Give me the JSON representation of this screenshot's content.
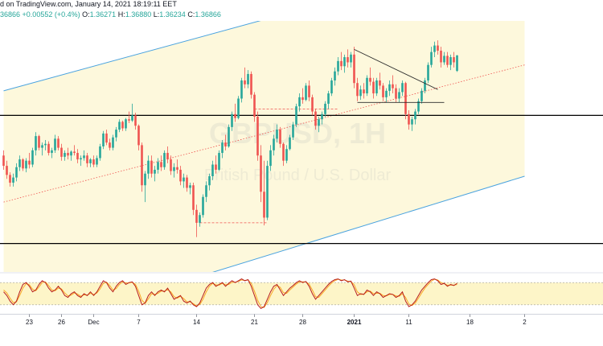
{
  "header": {
    "source": "d on TradingView.com, January 14, 2021 18:19:11 EET",
    "last_price": "36866",
    "change": "+0.00552 (+0.4%)",
    "o_label": "O:",
    "o_value": "1.36271",
    "h_label": "H:",
    "h_value": "1.36880",
    "l_label": "L:",
    "l_value": "1.36234",
    "c_label": "C:",
    "c_value": "1.36866"
  },
  "watermark": {
    "symbol": "GBPUSD, 1H",
    "name": "British Pound / U.S. Dollar"
  },
  "colors": {
    "up": "#26a69a",
    "down": "#ef5350",
    "channel_line": "#4aa3df",
    "channel_fill": "#fdf8dc",
    "horizontal": "#000000",
    "osc_k": "#b71c1c",
    "osc_d": "#f9a825",
    "osc_band": "#fdf5c8",
    "dashed": "#ef5350"
  },
  "chart_data": {
    "type": "candlestick",
    "x_ticks": [
      {
        "label": "23",
        "index": 8,
        "bold": false
      },
      {
        "label": "26",
        "index": 18,
        "bold": false
      },
      {
        "label": "Dec",
        "index": 28,
        "bold": false
      },
      {
        "label": "7",
        "index": 42,
        "bold": false
      },
      {
        "label": "14",
        "index": 60,
        "bold": false
      },
      {
        "label": "21",
        "index": 78,
        "bold": false
      },
      {
        "label": "28",
        "index": 93,
        "bold": false
      },
      {
        "label": "2021",
        "index": 109,
        "bold": true
      },
      {
        "label": "11",
        "index": 126,
        "bold": false
      },
      {
        "label": "18",
        "index": 145,
        "bold": false
      },
      {
        "label": "2",
        "index": 162,
        "bold": false
      }
    ],
    "price_range": [
      1.285,
      1.382
    ],
    "horizontal_levels": [
      1.3455,
      1.296
    ],
    "channel": {
      "upper": [
        [
          0,
          1.355
        ],
        [
          162,
          1.41
        ]
      ],
      "lower": [
        [
          0,
          1.26
        ],
        [
          162,
          1.322
        ]
      ],
      "mid_dotted": [
        [
          0,
          1.312
        ],
        [
          162,
          1.365
        ]
      ]
    },
    "dashed_levels": [
      {
        "from": 78,
        "to": 104,
        "price": 1.348
      },
      {
        "from": 61,
        "to": 82,
        "price": 1.304
      }
    ],
    "triangle": {
      "upper": [
        [
          109,
          1.371
        ],
        [
          135,
          1.3555
        ]
      ],
      "lower": [
        [
          110,
          1.3505
        ],
        [
          137,
          1.3505
        ]
      ]
    },
    "candles": [
      [
        1.33,
        1.332,
        1.3245,
        1.326
      ],
      [
        1.326,
        1.328,
        1.321,
        1.3225
      ],
      [
        1.3225,
        1.3235,
        1.318,
        1.3195
      ],
      [
        1.3195,
        1.323,
        1.318,
        1.3215
      ],
      [
        1.3215,
        1.327,
        1.32,
        1.3255
      ],
      [
        1.3255,
        1.33,
        1.324,
        1.3285
      ],
      [
        1.3285,
        1.329,
        1.324,
        1.325
      ],
      [
        1.325,
        1.329,
        1.3235,
        1.328
      ],
      [
        1.328,
        1.331,
        1.325,
        1.3265
      ],
      [
        1.3265,
        1.333,
        1.3255,
        1.332
      ],
      [
        1.332,
        1.339,
        1.33,
        1.3375
      ],
      [
        1.3375,
        1.338,
        1.332,
        1.333
      ],
      [
        1.333,
        1.335,
        1.33,
        1.334
      ],
      [
        1.334,
        1.336,
        1.332,
        1.3345
      ],
      [
        1.3345,
        1.3355,
        1.33,
        1.331
      ],
      [
        1.331,
        1.333,
        1.329,
        1.332
      ],
      [
        1.332,
        1.338,
        1.331,
        1.3365
      ],
      [
        1.3365,
        1.3375,
        1.332,
        1.333
      ],
      [
        1.333,
        1.3345,
        1.328,
        1.3295
      ],
      [
        1.3295,
        1.332,
        1.328,
        1.331
      ],
      [
        1.331,
        1.333,
        1.3285,
        1.33
      ],
      [
        1.33,
        1.332,
        1.328,
        1.3315
      ],
      [
        1.3315,
        1.334,
        1.33,
        1.331
      ],
      [
        1.331,
        1.3325,
        1.327,
        1.3285
      ],
      [
        1.3285,
        1.33,
        1.326,
        1.329
      ],
      [
        1.329,
        1.332,
        1.328,
        1.33
      ],
      [
        1.33,
        1.331,
        1.3255,
        1.327
      ],
      [
        1.327,
        1.329,
        1.3255,
        1.3285
      ],
      [
        1.3285,
        1.33,
        1.3255,
        1.3265
      ],
      [
        1.3265,
        1.33,
        1.3255,
        1.329
      ],
      [
        1.329,
        1.3345,
        1.328,
        1.3335
      ],
      [
        1.3335,
        1.3395,
        1.3325,
        1.3385
      ],
      [
        1.3385,
        1.34,
        1.334,
        1.335
      ],
      [
        1.335,
        1.3365,
        1.332,
        1.333
      ],
      [
        1.333,
        1.338,
        1.332,
        1.337
      ],
      [
        1.337,
        1.341,
        1.3355,
        1.34
      ],
      [
        1.34,
        1.344,
        1.339,
        1.343
      ],
      [
        1.343,
        1.3435,
        1.3395,
        1.3405
      ],
      [
        1.3405,
        1.3445,
        1.3395,
        1.344
      ],
      [
        1.344,
        1.347,
        1.3425,
        1.3435
      ],
      [
        1.3435,
        1.35,
        1.343,
        1.3455
      ],
      [
        1.3455,
        1.3465,
        1.34,
        1.3415
      ],
      [
        1.3415,
        1.342,
        1.332,
        1.334
      ],
      [
        1.334,
        1.335,
        1.316,
        1.3185
      ],
      [
        1.3185,
        1.324,
        1.312,
        1.323
      ],
      [
        1.323,
        1.33,
        1.321,
        1.328
      ],
      [
        1.328,
        1.33,
        1.3215,
        1.323
      ],
      [
        1.323,
        1.326,
        1.32,
        1.3245
      ],
      [
        1.3245,
        1.329,
        1.323,
        1.3275
      ],
      [
        1.3275,
        1.33,
        1.324,
        1.3255
      ],
      [
        1.3255,
        1.332,
        1.3245,
        1.331
      ],
      [
        1.331,
        1.3335,
        1.327,
        1.3285
      ],
      [
        1.3285,
        1.33,
        1.3225,
        1.324
      ],
      [
        1.324,
        1.327,
        1.3215,
        1.3255
      ],
      [
        1.3255,
        1.3285,
        1.323,
        1.3245
      ],
      [
        1.3245,
        1.326,
        1.3185,
        1.32
      ],
      [
        1.32,
        1.323,
        1.3175,
        1.3215
      ],
      [
        1.3215,
        1.3225,
        1.316,
        1.3175
      ],
      [
        1.3175,
        1.3195,
        1.315,
        1.3185
      ],
      [
        1.3185,
        1.3195,
        1.307,
        1.309
      ],
      [
        1.309,
        1.311,
        1.2985,
        1.304
      ],
      [
        1.304,
        1.308,
        1.3025,
        1.307
      ],
      [
        1.307,
        1.315,
        1.306,
        1.314
      ],
      [
        1.314,
        1.32,
        1.312,
        1.3185
      ],
      [
        1.3185,
        1.323,
        1.3165,
        1.322
      ],
      [
        1.322,
        1.328,
        1.3205,
        1.3265
      ],
      [
        1.3265,
        1.33,
        1.323,
        1.3245
      ],
      [
        1.3245,
        1.332,
        1.324,
        1.331
      ],
      [
        1.331,
        1.336,
        1.329,
        1.335
      ],
      [
        1.335,
        1.338,
        1.332,
        1.3335
      ],
      [
        1.3335,
        1.342,
        1.333,
        1.341
      ],
      [
        1.341,
        1.347,
        1.3395,
        1.346
      ],
      [
        1.346,
        1.35,
        1.343,
        1.3445
      ],
      [
        1.3445,
        1.353,
        1.344,
        1.352
      ],
      [
        1.352,
        1.36,
        1.3505,
        1.359
      ],
      [
        1.359,
        1.364,
        1.356,
        1.3575
      ],
      [
        1.3575,
        1.363,
        1.356,
        1.3615
      ],
      [
        1.3615,
        1.3625,
        1.352,
        1.3535
      ],
      [
        1.3535,
        1.3545,
        1.343,
        1.345
      ],
      [
        1.345,
        1.347,
        1.328,
        1.33
      ],
      [
        1.33,
        1.334,
        1.312,
        1.316
      ],
      [
        1.316,
        1.328,
        1.303,
        1.306
      ],
      [
        1.306,
        1.328,
        1.305,
        1.326
      ],
      [
        1.326,
        1.334,
        1.324,
        1.332
      ],
      [
        1.332,
        1.338,
        1.33,
        1.3365
      ],
      [
        1.3365,
        1.342,
        1.335,
        1.34
      ],
      [
        1.34,
        1.341,
        1.333,
        1.3345
      ],
      [
        1.3345,
        1.335,
        1.326,
        1.328
      ],
      [
        1.328,
        1.334,
        1.327,
        1.3325
      ],
      [
        1.3325,
        1.338,
        1.332,
        1.337
      ],
      [
        1.337,
        1.343,
        1.336,
        1.342
      ],
      [
        1.342,
        1.35,
        1.341,
        1.349
      ],
      [
        1.349,
        1.354,
        1.347,
        1.3525
      ],
      [
        1.3525,
        1.356,
        1.35,
        1.3515
      ],
      [
        1.3515,
        1.358,
        1.351,
        1.357
      ],
      [
        1.357,
        1.359,
        1.351,
        1.3525
      ],
      [
        1.3525,
        1.3535,
        1.3455,
        1.347
      ],
      [
        1.347,
        1.348,
        1.34,
        1.3415
      ],
      [
        1.3415,
        1.345,
        1.339,
        1.344
      ],
      [
        1.344,
        1.347,
        1.342,
        1.346
      ],
      [
        1.346,
        1.351,
        1.345,
        1.35
      ],
      [
        1.35,
        1.355,
        1.348,
        1.354
      ],
      [
        1.354,
        1.36,
        1.353,
        1.359
      ],
      [
        1.359,
        1.364,
        1.357,
        1.3625
      ],
      [
        1.3625,
        1.368,
        1.361,
        1.3665
      ],
      [
        1.3665,
        1.37,
        1.363,
        1.3645
      ],
      [
        1.3645,
        1.369,
        1.362,
        1.368
      ],
      [
        1.368,
        1.371,
        1.364,
        1.366
      ],
      [
        1.366,
        1.37,
        1.364,
        1.369
      ],
      [
        1.369,
        1.372,
        1.356,
        1.358
      ],
      [
        1.358,
        1.36,
        1.351,
        1.353
      ],
      [
        1.353,
        1.357,
        1.3515,
        1.3555
      ],
      [
        1.3555,
        1.358,
        1.352,
        1.354
      ],
      [
        1.354,
        1.361,
        1.353,
        1.36
      ],
      [
        1.36,
        1.364,
        1.357,
        1.3585
      ],
      [
        1.3585,
        1.36,
        1.352,
        1.354
      ],
      [
        1.354,
        1.36,
        1.353,
        1.359
      ],
      [
        1.359,
        1.362,
        1.3555,
        1.357
      ],
      [
        1.357,
        1.358,
        1.351,
        1.3525
      ],
      [
        1.3525,
        1.356,
        1.3505,
        1.355
      ],
      [
        1.355,
        1.359,
        1.353,
        1.3575
      ],
      [
        1.3575,
        1.361,
        1.354,
        1.356
      ],
      [
        1.356,
        1.3575,
        1.3505,
        1.352
      ],
      [
        1.352,
        1.356,
        1.3505,
        1.3545
      ],
      [
        1.3545,
        1.359,
        1.353,
        1.358
      ],
      [
        1.358,
        1.3585,
        1.344,
        1.346
      ],
      [
        1.346,
        1.3475,
        1.34,
        1.342
      ],
      [
        1.342,
        1.345,
        1.3395,
        1.344
      ],
      [
        1.344,
        1.348,
        1.342,
        1.347
      ],
      [
        1.347,
        1.352,
        1.346,
        1.351
      ],
      [
        1.351,
        1.356,
        1.35,
        1.355
      ],
      [
        1.355,
        1.36,
        1.354,
        1.359
      ],
      [
        1.359,
        1.366,
        1.358,
        1.365
      ],
      [
        1.365,
        1.372,
        1.364,
        1.37
      ],
      [
        1.37,
        1.374,
        1.368,
        1.3725
      ],
      [
        1.3725,
        1.3745,
        1.369,
        1.3705
      ],
      [
        1.3705,
        1.372,
        1.364,
        1.366
      ],
      [
        1.366,
        1.37,
        1.365,
        1.3685
      ],
      [
        1.3685,
        1.37,
        1.364,
        1.365
      ],
      [
        1.365,
        1.369,
        1.363,
        1.368
      ],
      [
        1.368,
        1.37,
        1.364,
        1.366
      ],
      [
        1.3627,
        1.3688,
        1.3623,
        1.3687
      ]
    ],
    "oscillator": {
      "range": [
        0,
        100
      ],
      "band": [
        20,
        80
      ],
      "k": [
        55,
        45,
        30,
        20,
        30,
        55,
        75,
        80,
        70,
        55,
        60,
        75,
        85,
        80,
        65,
        55,
        60,
        70,
        60,
        45,
        40,
        50,
        55,
        45,
        40,
        50,
        45,
        55,
        45,
        55,
        70,
        85,
        80,
        65,
        55,
        70,
        80,
        85,
        75,
        80,
        82,
        70,
        45,
        20,
        25,
        45,
        55,
        45,
        55,
        60,
        55,
        65,
        50,
        35,
        40,
        45,
        30,
        25,
        30,
        20,
        15,
        25,
        45,
        65,
        75,
        80,
        70,
        75,
        80,
        70,
        78,
        85,
        80,
        85,
        90,
        85,
        88,
        70,
        45,
        20,
        10,
        15,
        35,
        55,
        70,
        75,
        60,
        45,
        55,
        65,
        72,
        80,
        85,
        80,
        83,
        70,
        50,
        35,
        45,
        55,
        65,
        75,
        83,
        88,
        90,
        85,
        88,
        82,
        84,
        65,
        45,
        50,
        48,
        60,
        55,
        45,
        55,
        50,
        40,
        45,
        50,
        48,
        40,
        45,
        55,
        30,
        15,
        20,
        30,
        45,
        60,
        70,
        80,
        88,
        90,
        85,
        75,
        78,
        70,
        75,
        72,
        78
      ],
      "d": [
        60,
        52,
        38,
        26,
        28,
        45,
        65,
        77,
        74,
        62,
        58,
        68,
        80,
        82,
        72,
        60,
        58,
        65,
        63,
        52,
        44,
        46,
        52,
        49,
        43,
        47,
        46,
        51,
        48,
        52,
        63,
        78,
        81,
        72,
        60,
        64,
        75,
        82,
        79,
        79,
        81,
        75,
        57,
        32,
        24,
        36,
        50,
        48,
        51,
        57,
        57,
        61,
        55,
        42,
        38,
        43,
        37,
        28,
        28,
        23,
        17,
        21,
        35,
        55,
        70,
        78,
        74,
        73,
        78,
        74,
        75,
        81,
        81,
        83,
        87,
        86,
        87,
        78,
        57,
        32,
        15,
        13,
        26,
        45,
        62,
        72,
        67,
        53,
        51,
        60,
        68,
        76,
        82,
        82,
        82,
        76,
        60,
        42,
        40,
        50,
        60,
        70,
        79,
        85,
        89,
        87,
        87,
        84,
        83,
        74,
        55,
        48,
        49,
        55,
        57,
        50,
        51,
        51,
        45,
        44,
        48,
        48,
        44,
        43,
        50,
        40,
        22,
        18,
        25,
        38,
        52,
        65,
        75,
        84,
        89,
        87,
        80,
        77,
        73,
        73,
        73,
        75
      ]
    }
  }
}
